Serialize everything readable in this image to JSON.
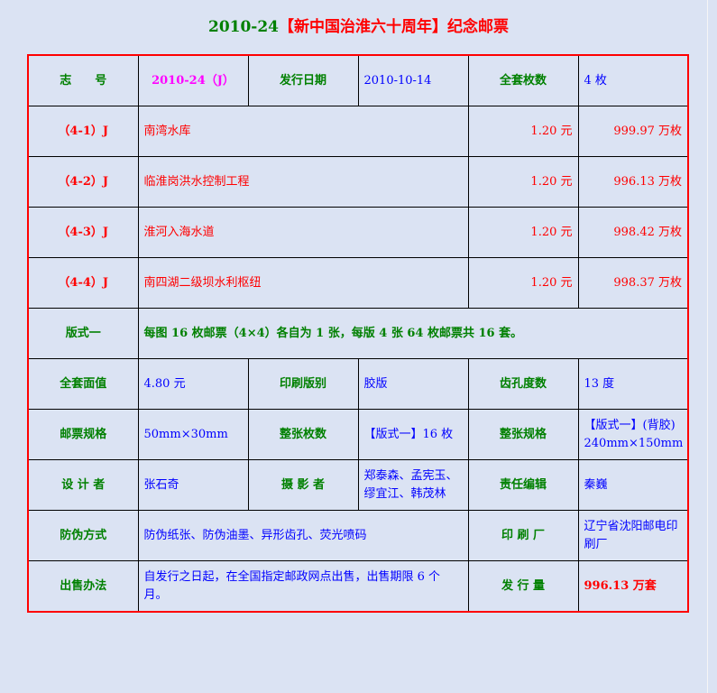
{
  "title": {
    "code": "2010-24",
    "name": "【新中国治淮六十周年】纪念邮票"
  },
  "header": {
    "id_label": "志　　号",
    "id_value": "2010-24（J）",
    "date_label": "发行日期",
    "date_value": "2010-10-14",
    "count_label": "全套枚数",
    "count_value": "4 枚"
  },
  "stamps": [
    {
      "code": "（4-1）J",
      "name": "南湾水库",
      "face": "1.20 元",
      "qty": "999.97 万枚"
    },
    {
      "code": "（4-2）J",
      "name": "临淮岗洪水控制工程",
      "face": "1.20 元",
      "qty": "996.13 万枚"
    },
    {
      "code": "（4-3）J",
      "name": "淮河入海水道",
      "face": "1.20 元",
      "qty": "998.42 万枚"
    },
    {
      "code": "（4-4）J",
      "name": "南四湖二级坝水利枢纽",
      "face": "1.20 元",
      "qty": "998.37 万枚"
    }
  ],
  "format": {
    "label": "版式一",
    "value": "每图 16 枚邮票（4×4）各自为 1 张，每版 4 张 64 枚邮票共 16 套。"
  },
  "rows": {
    "total_face_label": "全套面值",
    "total_face": "4.80 元",
    "print_label": "印刷版别",
    "print": "胶版",
    "perf_label": "齿孔度数",
    "perf": "13 度",
    "size_label": "邮票规格",
    "size": "50mm×30mm",
    "sheet_count_label": "整张枚数",
    "sheet_count": "【版式一】16 枚",
    "sheet_size_label": "整张规格",
    "sheet_size_1": "【版式一】(背胶)",
    "sheet_size_2": "240mm×150mm",
    "designer_label": "设 计 者",
    "designer": "张石奇",
    "photo_label": "摄 影 者",
    "photo_1": "郑泰森、孟宪玉、",
    "photo_2": "缪宜江、韩茂林",
    "editor_label": "责任编辑",
    "editor": "秦巍",
    "security_label": "防伪方式",
    "security": "防伪纸张、防伪油墨、异形齿孔、荧光喷码",
    "printer_label": "印 刷 厂",
    "printer": "辽宁省沈阳邮电印刷厂",
    "sale_label": "出售办法",
    "sale": "自发行之日起，在全国指定邮政网点出售，出售期限 6 个月。",
    "issue_label": "发 行 量",
    "issue": "996.13 万套"
  }
}
